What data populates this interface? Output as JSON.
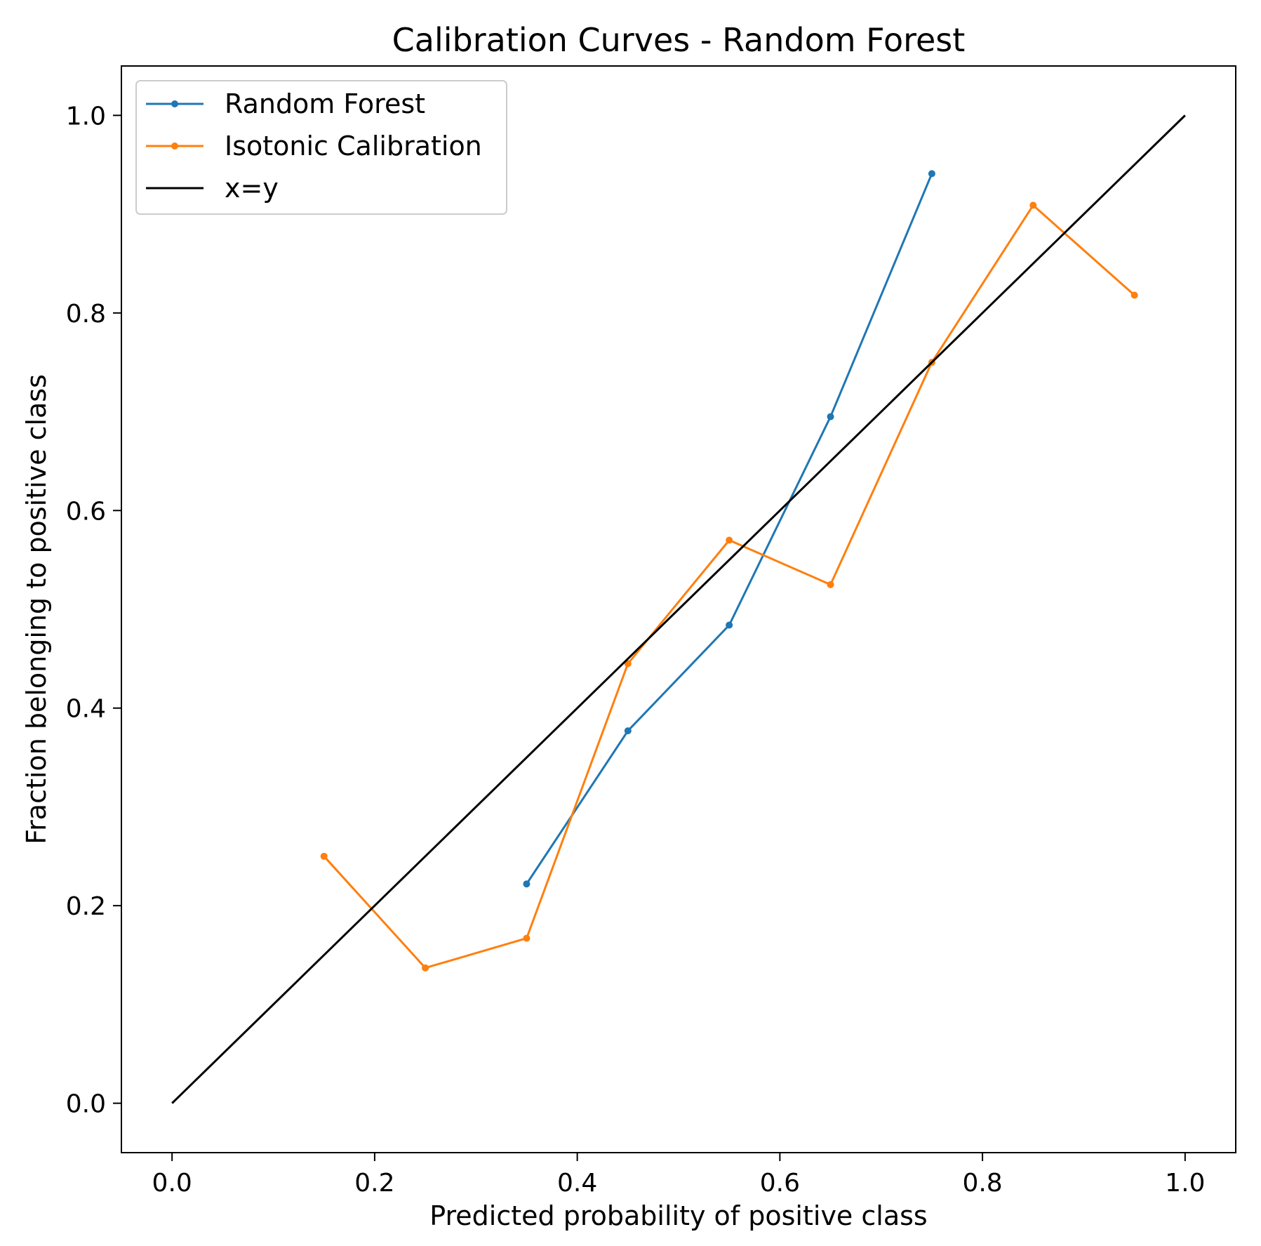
{
  "chart_data": {
    "type": "line",
    "title": "Calibration Curves - Random Forest",
    "xlabel": "Predicted probability of positive class",
    "ylabel": "Fraction belonging to positive class",
    "xlim": [
      -0.05,
      1.05
    ],
    "ylim": [
      -0.05,
      1.05
    ],
    "xticks": [
      "0.0",
      "0.2",
      "0.4",
      "0.6",
      "0.8",
      "1.0"
    ],
    "yticks": [
      "0.0",
      "0.2",
      "0.4",
      "0.6",
      "0.8",
      "1.0"
    ],
    "grid": false,
    "legend_position": "top-left",
    "series": [
      {
        "name": "Random Forest",
        "color": "#1f77b4",
        "marker": "dot",
        "x": [
          0.35,
          0.45,
          0.55,
          0.65,
          0.75
        ],
        "y": [
          0.222,
          0.377,
          0.484,
          0.695,
          0.941
        ]
      },
      {
        "name": "Isotonic Calibration",
        "color": "#ff7f0e",
        "marker": "dot",
        "x": [
          0.15,
          0.25,
          0.35,
          0.45,
          0.55,
          0.65,
          0.75,
          0.85,
          0.95
        ],
        "y": [
          0.25,
          0.137,
          0.167,
          0.445,
          0.57,
          0.525,
          0.75,
          0.909,
          0.818
        ]
      },
      {
        "name": "x=y",
        "color": "#000000",
        "marker": "none",
        "x": [
          0.0,
          1.0
        ],
        "y": [
          0.0,
          1.0
        ]
      }
    ]
  }
}
